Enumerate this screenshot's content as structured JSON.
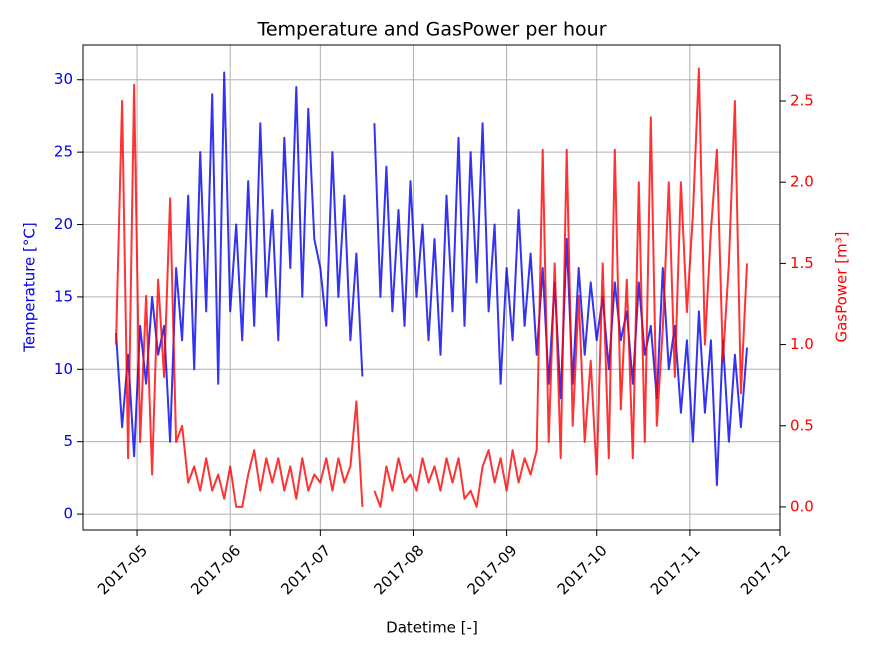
{
  "chart_data": {
    "type": "line",
    "title": "Temperature and GasPower per hour",
    "xlabel": "Datetime [-]",
    "ylabel": "Temperature [°C]",
    "y2label": "GasPower [m³]",
    "x": [
      114,
      116,
      118,
      120,
      122,
      124,
      126,
      128,
      130,
      132,
      134,
      136,
      138,
      140,
      142,
      144,
      146,
      148,
      150,
      152,
      154,
      156,
      158,
      160,
      162,
      164,
      166,
      168,
      170,
      172,
      174,
      176,
      178,
      180,
      182,
      184,
      186,
      188,
      190,
      192,
      194,
      196,
      198,
      200,
      202,
      204,
      206,
      208,
      210,
      212,
      214,
      216,
      218,
      220,
      222,
      224,
      226,
      228,
      230,
      232,
      234,
      236,
      238,
      240,
      242,
      244,
      246,
      248,
      250,
      252,
      254,
      256,
      258,
      260,
      262,
      264,
      266,
      268,
      270,
      272,
      274,
      276,
      278,
      280,
      282,
      284,
      286,
      288,
      290,
      292,
      294,
      296,
      298,
      300,
      302,
      304,
      306,
      308,
      310,
      312,
      314,
      316,
      318,
      320,
      322,
      324
    ],
    "series": [
      {
        "name": "Temperature",
        "color": "#0000ee",
        "axis": "y",
        "values": [
          12.5,
          6,
          11,
          4,
          13,
          9,
          15,
          11,
          13,
          5,
          17,
          12,
          22,
          10,
          25,
          14,
          29,
          9,
          30.5,
          14,
          20,
          12,
          23,
          13,
          27,
          15,
          21,
          12,
          26,
          17,
          29.5,
          15,
          28,
          19,
          17,
          13,
          25,
          15,
          22,
          12,
          18,
          9.5,
          null,
          27,
          15,
          24,
          14,
          21,
          13,
          23,
          15,
          20,
          12,
          19,
          11,
          22,
          14,
          26,
          13,
          25,
          16,
          27,
          14,
          20,
          9,
          17,
          12,
          21,
          13,
          18,
          11,
          17,
          9,
          16,
          8,
          19,
          9,
          17,
          11,
          16,
          12,
          15,
          10,
          16,
          12,
          14,
          9,
          16,
          11,
          13,
          8,
          17,
          10,
          13,
          7,
          12,
          5,
          14,
          7,
          12,
          2,
          12,
          5,
          11,
          6,
          11.5
        ]
      },
      {
        "name": "GasPower",
        "color": "#ff0000",
        "axis": "y2",
        "values": [
          1.0,
          2.5,
          0.3,
          2.6,
          0.4,
          1.3,
          0.2,
          1.4,
          0.8,
          1.9,
          0.4,
          0.5,
          0.15,
          0.25,
          0.1,
          0.3,
          0.1,
          0.2,
          0.05,
          0.25,
          0.0,
          0.0,
          0.2,
          0.35,
          0.1,
          0.3,
          0.15,
          0.3,
          0.1,
          0.25,
          0.05,
          0.3,
          0.1,
          0.2,
          0.15,
          0.3,
          0.1,
          0.3,
          0.15,
          0.25,
          0.65,
          0.0,
          null,
          0.1,
          0.0,
          0.25,
          0.1,
          0.3,
          0.15,
          0.2,
          0.1,
          0.3,
          0.15,
          0.25,
          0.1,
          0.3,
          0.15,
          0.3,
          0.05,
          0.1,
          0.0,
          0.25,
          0.35,
          0.15,
          0.3,
          0.1,
          0.35,
          0.15,
          0.3,
          0.2,
          0.35,
          2.2,
          0.4,
          1.5,
          0.3,
          2.2,
          0.5,
          1.3,
          0.4,
          0.9,
          0.2,
          1.5,
          0.3,
          2.2,
          0.6,
          1.4,
          0.3,
          2.0,
          0.4,
          2.4,
          0.5,
          1.1,
          2.0,
          0.8,
          2.0,
          1.2,
          1.8,
          2.7,
          1.0,
          1.7,
          2.2,
          0.9,
          1.5,
          2.5,
          0.7,
          1.5
        ]
      }
    ],
    "xlim": [
      103,
      335
    ],
    "xticks": [
      {
        "value": 121,
        "label": "2017-05"
      },
      {
        "value": 152,
        "label": "2017-06"
      },
      {
        "value": 182,
        "label": "2017-07"
      },
      {
        "value": 213,
        "label": "2017-08"
      },
      {
        "value": 244,
        "label": "2017-09"
      },
      {
        "value": 274,
        "label": "2017-10"
      },
      {
        "value": 305,
        "label": "2017-11"
      },
      {
        "value": 335,
        "label": "2017-12"
      }
    ],
    "ylim": [
      -1.1,
      32.4
    ],
    "yticks": [
      0,
      5,
      10,
      15,
      20,
      25,
      30
    ],
    "y2lim": [
      -0.142,
      2.845
    ],
    "y2ticks": [
      {
        "value": 0,
        "label": "0.0"
      },
      0.5,
      {
        "value": 1,
        "label": "1.0"
      },
      1.5,
      {
        "value": 2,
        "label": "2.0"
      },
      2.5
    ],
    "grid": true
  }
}
